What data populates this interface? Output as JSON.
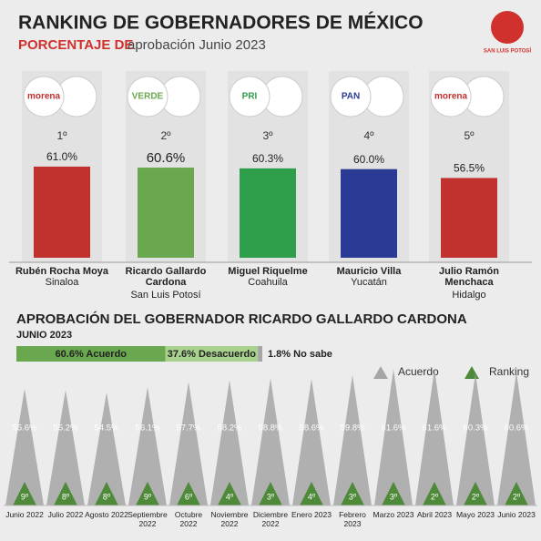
{
  "header": {
    "title": "RANKING DE GOBERNADORES DE MÉXICO",
    "subtitle_bold": "PORCENTAJE DE",
    "subtitle": "aprobación Junio 2023",
    "logo": "SAN LUIS POTOSÍ"
  },
  "chart_data": [
    {
      "type": "bar",
      "categories": [
        "1º",
        "2º",
        "3º",
        "4º",
        "5º"
      ],
      "names": [
        "Rubén Rocha Moya",
        "Ricardo Gallardo Cardona",
        "Miguel Riquelme",
        "Mauricio Villa",
        "Julio Ramón Menchaca"
      ],
      "states": [
        "Sinaloa",
        "San Luis Potosí",
        "Coahuila",
        "Yucatán",
        "Hidalgo"
      ],
      "parties": [
        "morena",
        "VERDE",
        "PRI",
        "PAN",
        "morena"
      ],
      "values": [
        61.0,
        60.6,
        60.3,
        60.0,
        56.5
      ],
      "value_labels": [
        "61.0%",
        "60.6%",
        "60.3%",
        "60.0%",
        "56.5%"
      ],
      "colors": [
        "#c1312e",
        "#6aa84f",
        "#2f9e4a",
        "#2b3a94",
        "#c1312e"
      ],
      "ylim": [
        25,
        65
      ]
    },
    {
      "type": "stacked-bar",
      "title": "APROBACIÓN DEL GOBERNADOR RICARDO GALLARDO CARDONA",
      "subtitle": "JUNIO 2023",
      "series": [
        {
          "color": "#6aa84f",
          "values": [
            60.6
          ],
          "value_labels": [
            "60.6% Acuerdo"
          ]
        },
        {
          "color": "#a9d18e",
          "values": [
            37.6
          ],
          "value_labels": [
            "37.6% Desacuerdo"
          ]
        },
        {
          "color": "#a6a6a6",
          "values": [
            1.8
          ],
          "value_labels": [
            "1.8% No sabe"
          ]
        }
      ],
      "xlim": [
        0,
        100
      ]
    },
    {
      "type": "triangle",
      "categories": [
        "Junio 2022",
        "Julio 2022",
        "Agosto 2022",
        "Septiembre 2022",
        "Octubre 2022",
        "Noviembre 2022",
        "Diciembre 2022",
        "Enero 2023",
        "Febrero 2023",
        "Marzo 2023",
        "Abril 2023",
        "Mayo 2023",
        "Junio 2023"
      ],
      "series": [
        {
          "name": "Acuerdo",
          "color": "#a6a6a6",
          "values": [
            55.6,
            55.2,
            54.5,
            56.1,
            57.7,
            58.2,
            58.8,
            58.6,
            59.8,
            61.6,
            61.6,
            60.3,
            60.6
          ],
          "value_labels": [
            "55.6%",
            "55.2%",
            "54.5%",
            "56.1%",
            "57.7%",
            "58.2%",
            "58.8%",
            "58.6%",
            "59.8%",
            "61.6%",
            "61.6%",
            "60.3%",
            "60.6%"
          ]
        },
        {
          "name": "Ranking",
          "color": "#4e8a3a",
          "values": [
            9,
            8,
            8,
            9,
            6,
            4,
            3,
            4,
            3,
            3,
            2,
            2,
            2
          ],
          "value_labels": [
            "9º",
            "8º",
            "8º",
            "9º",
            "6º",
            "4º",
            "3º",
            "4º",
            "3º",
            "3º",
            "2º",
            "2º",
            "2º"
          ]
        }
      ],
      "ylim": [
        20,
        65
      ]
    }
  ]
}
